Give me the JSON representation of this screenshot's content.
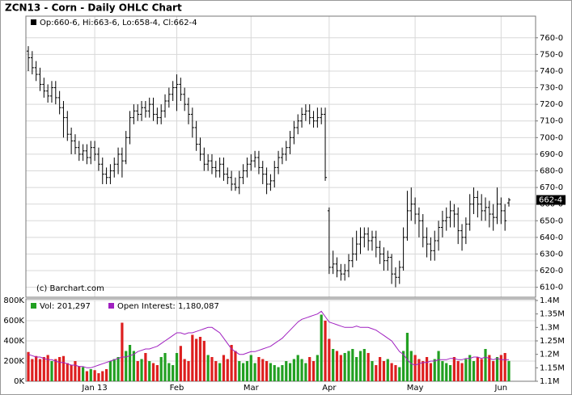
{
  "chart_data": [
    {
      "type": "ohlc",
      "title": "ZCN13 - Corn - Daily OHLC Chart",
      "legend_text": "Op:660-6, Hi:663-6, Lo:658-4, Cl:662-4",
      "credit": "(c) Barchart.com",
      "last_label": "662-4",
      "color": "#000000",
      "grid": true,
      "categories": [
        null,
        null,
        null,
        null,
        null,
        null,
        null,
        null,
        null,
        null,
        null,
        null,
        null,
        null,
        null,
        null,
        null,
        "Jan 13",
        null,
        null,
        null,
        null,
        null,
        null,
        null,
        null,
        null,
        null,
        null,
        null,
        null,
        null,
        null,
        null,
        null,
        null,
        null,
        null,
        "Feb",
        null,
        null,
        null,
        null,
        null,
        null,
        null,
        null,
        null,
        null,
        null,
        null,
        null,
        null,
        null,
        null,
        null,
        null,
        "Mar",
        null,
        null,
        null,
        null,
        null,
        null,
        null,
        null,
        null,
        null,
        null,
        null,
        null,
        null,
        null,
        null,
        null,
        null,
        null,
        "Apr",
        null,
        null,
        null,
        null,
        null,
        null,
        null,
        null,
        null,
        null,
        null,
        null,
        null,
        null,
        null,
        null,
        null,
        null,
        null,
        null,
        null,
        "May",
        null,
        null,
        null,
        null,
        null,
        null,
        null,
        null,
        null,
        null,
        null,
        null,
        null,
        null,
        null,
        null,
        null,
        null,
        null,
        null,
        null,
        "Jun",
        null,
        null
      ],
      "open": [
        752,
        748,
        742,
        738,
        732,
        728,
        725,
        730,
        724,
        718,
        712,
        702,
        698,
        694,
        690,
        692,
        688,
        694,
        690,
        684,
        678,
        676,
        680,
        684,
        690,
        686,
        700,
        712,
        716,
        714,
        718,
        716,
        720,
        714,
        712,
        716,
        722,
        726,
        730,
        732,
        726,
        720,
        714,
        706,
        696,
        690,
        684,
        686,
        682,
        680,
        684,
        678,
        676,
        672,
        670,
        676,
        680,
        684,
        686,
        688,
        682,
        678,
        672,
        674,
        682,
        688,
        690,
        694,
        700,
        706,
        710,
        714,
        716,
        712,
        710,
        712,
        714,
        656,
        622,
        624,
        620,
        618,
        620,
        626,
        630,
        636,
        640,
        642,
        638,
        640,
        634,
        630,
        626,
        628,
        618,
        616,
        622,
        640,
        656,
        660,
        654,
        650,
        640,
        636,
        632,
        638,
        646,
        650,
        652,
        656,
        654,
        644,
        640,
        648,
        660,
        664,
        660,
        656,
        658,
        654,
        652,
        660,
        656,
        660.75
      ],
      "high": [
        755,
        752,
        746,
        742,
        736,
        732,
        734,
        734,
        728,
        722,
        716,
        706,
        702,
        698,
        696,
        696,
        698,
        698,
        694,
        688,
        682,
        684,
        688,
        694,
        694,
        704,
        716,
        720,
        720,
        722,
        722,
        724,
        724,
        718,
        720,
        726,
        730,
        734,
        738,
        736,
        730,
        724,
        718,
        710,
        700,
        694,
        690,
        690,
        686,
        688,
        688,
        682,
        680,
        676,
        680,
        684,
        688,
        690,
        692,
        692,
        686,
        682,
        678,
        686,
        692,
        694,
        698,
        704,
        710,
        714,
        718,
        720,
        720,
        716,
        718,
        718,
        718,
        658,
        632,
        628,
        624,
        624,
        630,
        640,
        644,
        646,
        646,
        646,
        644,
        644,
        638,
        634,
        632,
        630,
        622,
        626,
        646,
        668,
        670,
        664,
        658,
        654,
        646,
        640,
        644,
        650,
        656,
        658,
        662,
        660,
        658,
        648,
        652,
        666,
        670,
        668,
        666,
        664,
        662,
        660,
        670,
        664,
        660,
        663.75
      ],
      "low": [
        740,
        738,
        734,
        728,
        724,
        721,
        721,
        720,
        714,
        700,
        698,
        690,
        690,
        686,
        686,
        684,
        684,
        686,
        680,
        672,
        672,
        672,
        676,
        678,
        676,
        684,
        696,
        708,
        710,
        710,
        712,
        712,
        710,
        708,
        708,
        712,
        718,
        722,
        716,
        722,
        716,
        708,
        700,
        692,
        686,
        680,
        680,
        678,
        676,
        676,
        674,
        672,
        668,
        668,
        666,
        672,
        676,
        680,
        682,
        678,
        672,
        666,
        668,
        670,
        678,
        684,
        686,
        690,
        696,
        702,
        706,
        710,
        708,
        706,
        706,
        708,
        674,
        618,
        618,
        616,
        614,
        614,
        616,
        622,
        626,
        630,
        634,
        632,
        632,
        628,
        624,
        620,
        620,
        612,
        610,
        612,
        620,
        638,
        650,
        648,
        640,
        634,
        628,
        626,
        626,
        632,
        640,
        644,
        646,
        646,
        636,
        632,
        636,
        644,
        654,
        652,
        650,
        650,
        646,
        644,
        648,
        648,
        644,
        658.5
      ],
      "close": [
        748,
        742,
        738,
        732,
        728,
        725,
        730,
        724,
        718,
        712,
        702,
        698,
        694,
        690,
        692,
        688,
        694,
        690,
        684,
        678,
        676,
        680,
        684,
        690,
        686,
        700,
        712,
        716,
        714,
        718,
        716,
        720,
        714,
        712,
        716,
        722,
        726,
        730,
        732,
        726,
        720,
        714,
        706,
        696,
        690,
        684,
        686,
        682,
        680,
        684,
        678,
        676,
        672,
        670,
        676,
        680,
        684,
        686,
        688,
        682,
        678,
        672,
        674,
        682,
        688,
        690,
        694,
        700,
        706,
        710,
        714,
        716,
        712,
        710,
        712,
        714,
        676,
        622,
        624,
        620,
        618,
        620,
        626,
        630,
        636,
        640,
        642,
        638,
        640,
        634,
        630,
        626,
        628,
        618,
        616,
        622,
        640,
        656,
        660,
        654,
        650,
        640,
        636,
        632,
        638,
        646,
        650,
        652,
        656,
        654,
        644,
        640,
        648,
        660,
        664,
        660,
        656,
        658,
        654,
        652,
        660,
        656,
        650,
        662.5
      ],
      "ylim": [
        604,
        773
      ],
      "yticks": [
        {
          "value": 610,
          "label": "610-0"
        },
        {
          "value": 620,
          "label": "620-0"
        },
        {
          "value": 630,
          "label": "630-0"
        },
        {
          "value": 640,
          "label": "640-0"
        },
        {
          "value": 650,
          "label": "650-0"
        },
        {
          "value": 660,
          "label": "660-0"
        },
        {
          "value": 670,
          "label": "670-0"
        },
        {
          "value": 680,
          "label": "680-0"
        },
        {
          "value": 690,
          "label": "690-0"
        },
        {
          "value": 700,
          "label": "700-0"
        },
        {
          "value": 710,
          "label": "710-0"
        },
        {
          "value": 720,
          "label": "720-0"
        },
        {
          "value": 730,
          "label": "730-0"
        },
        {
          "value": 740,
          "label": "740-0"
        },
        {
          "value": 750,
          "label": "750-0"
        },
        {
          "value": 760,
          "label": "760-0"
        }
      ]
    },
    {
      "type": "bar",
      "up_color": "#22a022",
      "down_color": "#dd1f1f",
      "grid": true,
      "series": [
        {
          "name": "Vol: 201,297",
          "color": "#22a022",
          "values": [
            290,
            220,
            250,
            220,
            240,
            260,
            200,
            220,
            240,
            250,
            180,
            160,
            200,
            150,
            140,
            100,
            120,
            110,
            80,
            100,
            120,
            200,
            220,
            240,
            580,
            300,
            360,
            300,
            200,
            220,
            280,
            200,
            180,
            160,
            240,
            280,
            180,
            160,
            280,
            350,
            220,
            200,
            460,
            420,
            440,
            400,
            260,
            240,
            200,
            180,
            260,
            220,
            360,
            300,
            200,
            180,
            200,
            260,
            180,
            240,
            220,
            200,
            180,
            160,
            140,
            160,
            200,
            180,
            220,
            260,
            220,
            180,
            240,
            200,
            260,
            660,
            600,
            420,
            320,
            300,
            260,
            280,
            300,
            320,
            240,
            300,
            320,
            280,
            200,
            160,
            240,
            200,
            220,
            180,
            160,
            140,
            300,
            480,
            300,
            260,
            220,
            200,
            240,
            180,
            220,
            300,
            200,
            180,
            160,
            240,
            200,
            180,
            220,
            260,
            200,
            240,
            220,
            320,
            260,
            200,
            240,
            260,
            280,
            201.297
          ]
        },
        {
          "name": "Open Interest: 1,180,087",
          "color": "#a020c0",
          "axis": "y2",
          "type": "line",
          "values": [
            1.2,
            1.195,
            1.19,
            1.19,
            1.185,
            1.18,
            1.18,
            1.175,
            1.17,
            1.17,
            1.165,
            1.16,
            1.16,
            1.155,
            1.155,
            1.15,
            1.15,
            1.155,
            1.16,
            1.165,
            1.17,
            1.175,
            1.18,
            1.185,
            1.19,
            1.19,
            1.195,
            1.2,
            1.21,
            1.215,
            1.22,
            1.22,
            1.225,
            1.23,
            1.24,
            1.25,
            1.26,
            1.27,
            1.28,
            1.28,
            1.275,
            1.28,
            1.28,
            1.285,
            1.29,
            1.295,
            1.3,
            1.3,
            1.29,
            1.28,
            1.26,
            1.24,
            1.22,
            1.21,
            1.2,
            1.2,
            1.205,
            1.21,
            1.21,
            1.215,
            1.22,
            1.225,
            1.23,
            1.24,
            1.25,
            1.26,
            1.275,
            1.29,
            1.305,
            1.32,
            1.33,
            1.335,
            1.34,
            1.345,
            1.35,
            1.36,
            1.34,
            1.32,
            1.315,
            1.31,
            1.305,
            1.3,
            1.3,
            1.3,
            1.305,
            1.3,
            1.3,
            1.3,
            1.295,
            1.29,
            1.28,
            1.27,
            1.26,
            1.25,
            1.23,
            1.21,
            1.2,
            1.18,
            1.165,
            1.16,
            1.165,
            1.17,
            1.17,
            1.175,
            1.175,
            1.18,
            1.18,
            1.18,
            1.185,
            1.185,
            1.18,
            1.18,
            1.185,
            1.185,
            1.19,
            1.19,
            1.185,
            1.19,
            1.185,
            1.18,
            1.185,
            1.18,
            1.18,
            1.180087
          ]
        }
      ],
      "ylim": [
        0,
        800
      ],
      "yticks": [
        {
          "value": 0,
          "label": "0K"
        },
        {
          "value": 200,
          "label": "200K"
        },
        {
          "value": 400,
          "label": "400K"
        },
        {
          "value": 600,
          "label": "600K"
        },
        {
          "value": 800,
          "label": "800K"
        }
      ],
      "y2lim": [
        1.1,
        1.4
      ],
      "y2ticks": [
        {
          "value": 1.1,
          "label": "1.1M"
        },
        {
          "value": 1.15,
          "label": "1.15M"
        },
        {
          "value": 1.2,
          "label": "1.2M"
        },
        {
          "value": 1.25,
          "label": "1.25M"
        },
        {
          "value": 1.3,
          "label": "1.3M"
        },
        {
          "value": 1.35,
          "label": "1.35M"
        },
        {
          "value": 1.4,
          "label": "1.4M"
        }
      ]
    }
  ]
}
